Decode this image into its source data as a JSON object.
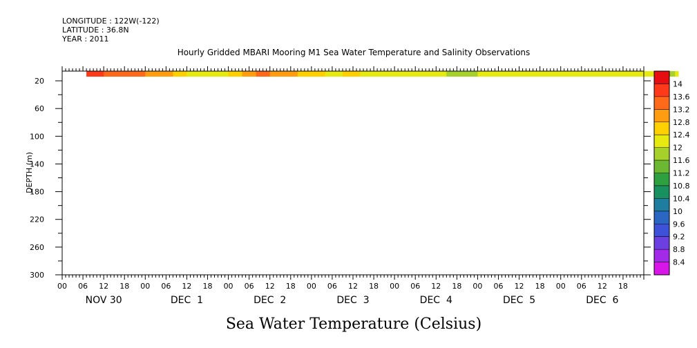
{
  "header": {
    "longitude": "LONGITUDE : 122W(-122)",
    "latitude": "LATITUDE : 36.8N",
    "year": "YEAR : 2011"
  },
  "chart_data": {
    "type": "heatmap",
    "title": "Hourly Gridded MBARI Mooring M1 Sea Water Temperature and Salinity Observations",
    "xlabel": "Sea Water Temperature (Celsius)",
    "ylabel": "DEPTH (m)",
    "x_hour_ticks": [
      "00",
      "06",
      "12",
      "18",
      "00",
      "06",
      "12",
      "18",
      "00",
      "06",
      "12",
      "18",
      "00",
      "06",
      "12",
      "18",
      "00",
      "06",
      "12",
      "18",
      "00",
      "06",
      "12",
      "18",
      "00",
      "06",
      "12",
      "18"
    ],
    "x_day_labels": [
      "NOV 30",
      "DEC  1",
      "DEC  2",
      "DEC  3",
      "DEC  4",
      "DEC  5",
      "DEC  6"
    ],
    "xlim_hours": [
      0,
      168
    ],
    "y_ticks": [
      20,
      60,
      100,
      140,
      180,
      220,
      260,
      300
    ],
    "ylim": [
      300,
      6
    ],
    "data_depth_range": [
      6,
      14
    ],
    "data_start_hour": 7,
    "colorbar": {
      "levels": [
        8.4,
        8.8,
        9.2,
        9.6,
        10,
        10.4,
        10.8,
        11.2,
        11.6,
        12,
        12.4,
        12.8,
        13.2,
        13.6,
        14
      ],
      "labels": [
        "14",
        "13.6",
        "13.2",
        "12.8",
        "12.4",
        "12",
        "11.6",
        "11.2",
        "10.8",
        "10.4",
        "10",
        "9.6",
        "9.2",
        "8.8",
        "8.4"
      ],
      "colors": [
        "#d816e8",
        "#a22ae8",
        "#6b3fe0",
        "#3d52d8",
        "#2b66c2",
        "#1f7ea0",
        "#189060",
        "#2ea040",
        "#6cb832",
        "#a6d02a",
        "#e6ea10",
        "#ffd000",
        "#ff9c10",
        "#ff6a1a",
        "#ff3a1a",
        "#e60e10",
        "#b00e0e"
      ],
      "range": [
        8.0,
        14.4
      ]
    },
    "temperature_hourly": [
      13.95,
      13.85,
      13.75,
      13.65,
      13.6,
      13.55,
      13.5,
      13.45,
      13.42,
      13.4,
      13.38,
      13.36,
      13.35,
      13.34,
      13.3,
      13.25,
      13.2,
      13.15,
      13.1,
      13.05,
      13.0,
      12.95,
      12.9,
      12.85,
      12.8,
      12.7,
      12.6,
      12.5,
      12.4,
      12.35,
      12.3,
      12.3,
      12.3,
      12.3,
      12.3,
      12.3,
      12.3,
      12.3,
      12.3,
      12.3,
      12.35,
      12.45,
      12.55,
      12.65,
      12.75,
      12.85,
      12.95,
      13.05,
      13.15,
      13.2,
      13.25,
      13.25,
      13.2,
      13.15,
      13.1,
      13.05,
      13.0,
      12.95,
      12.9,
      12.85,
      12.8,
      12.75,
      12.7,
      12.65,
      12.6,
      12.55,
      12.5,
      12.45,
      12.4,
      12.35,
      12.3,
      12.3,
      12.3,
      12.35,
      12.45,
      12.55,
      12.6,
      12.55,
      12.45,
      12.35,
      12.3,
      12.25,
      12.2,
      12.2,
      12.2,
      12.2,
      12.2,
      12.2,
      12.2,
      12.2,
      12.2,
      12.2,
      12.2,
      12.2,
      12.2,
      12.2,
      12.2,
      12.2,
      12.2,
      12.2,
      12.15,
      12.1,
      12.05,
      12.0,
      11.95,
      11.9,
      11.85,
      11.8,
      11.8,
      11.8,
      11.85,
      11.9,
      11.95,
      12.0,
      12.0,
      12.0,
      12.0,
      12.0,
      12.0,
      12.0,
      12.0,
      12.0,
      12.0,
      12.0,
      12.0,
      12.0,
      12.0,
      12.0,
      12.0,
      12.0,
      12.0,
      12.0,
      12.0,
      12.0,
      12.0,
      12.0,
      12.0,
      12.0,
      12.0,
      12.0,
      12.0,
      12.0,
      12.0,
      12.0,
      12.0,
      12.0,
      12.0,
      12.0,
      12.0,
      12.0,
      12.0,
      12.0,
      12.0,
      12.0,
      12.0,
      12.0,
      12.0,
      12.0,
      12.0,
      12.0,
      12.0,
      12.0,
      12.0,
      12.0,
      12.0,
      11.9,
      11.8,
      11.8,
      11.9,
      11.95,
      12.0
    ]
  }
}
